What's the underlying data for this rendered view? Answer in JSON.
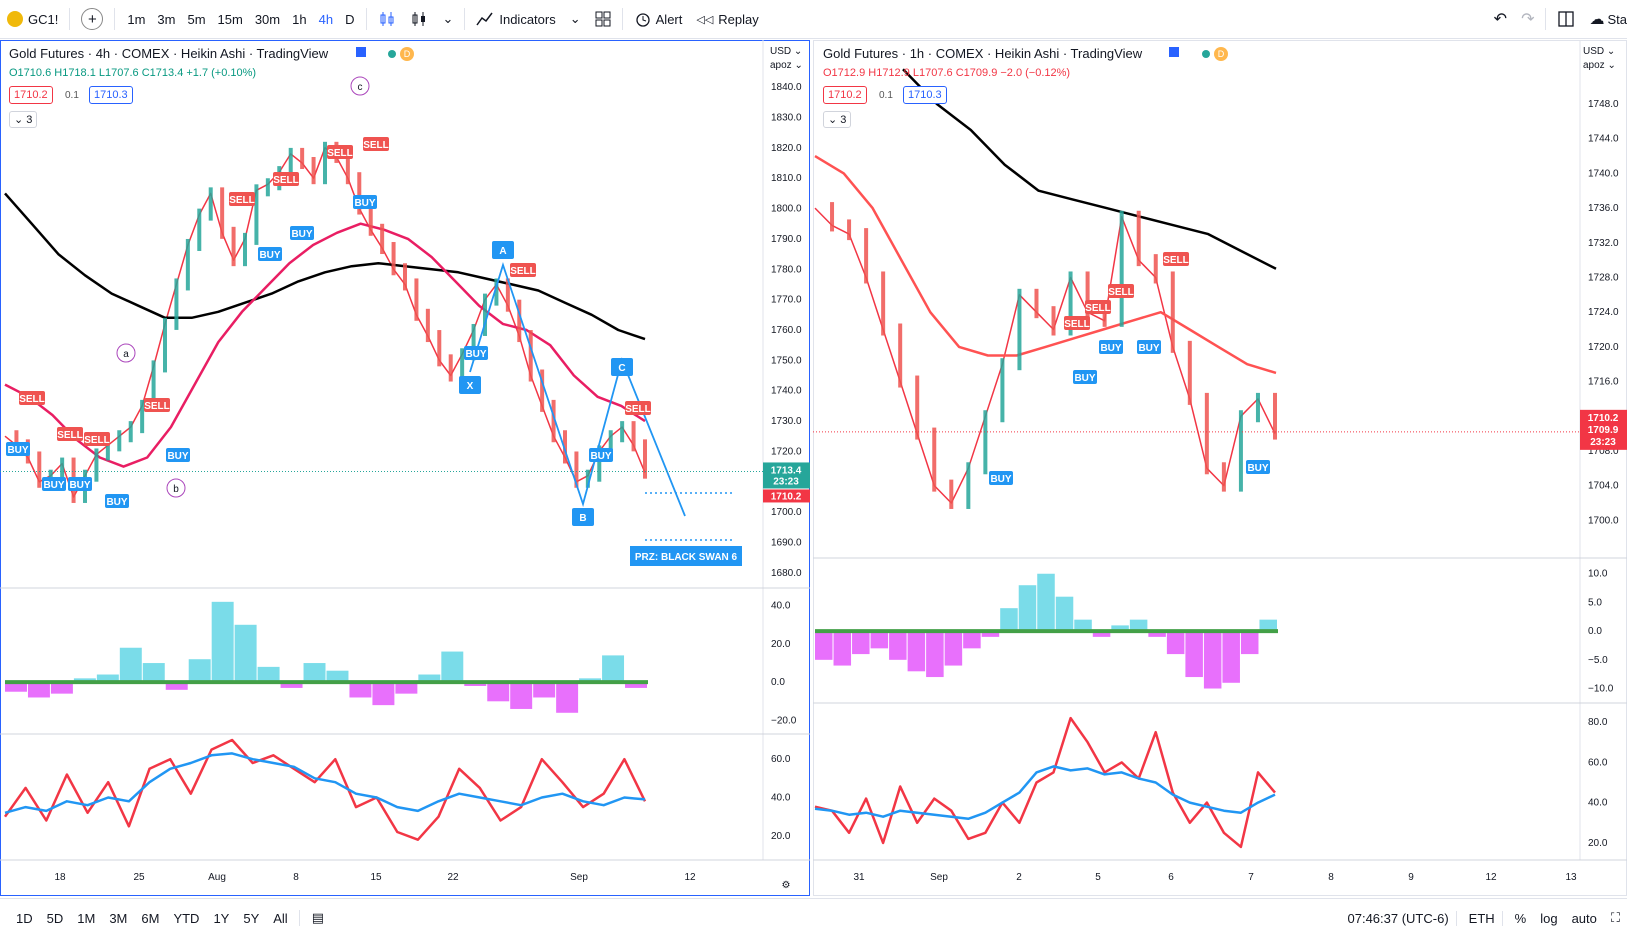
{
  "toolbar": {
    "symbol": "GC1!",
    "timeframes": [
      "1m",
      "3m",
      "5m",
      "15m",
      "30m",
      "1h",
      "4h",
      "D"
    ],
    "active_timeframe": "4h",
    "indicators": "Indicators",
    "alert": "Alert",
    "replay": "Replay",
    "right_partial": "Sta"
  },
  "bottombar": {
    "ranges": [
      "1D",
      "5D",
      "1M",
      "3M",
      "6M",
      "YTD",
      "1Y",
      "5Y",
      "All"
    ],
    "time": "07:46:37 (UTC-6)",
    "session": "ETH",
    "pct": "%",
    "log": "log",
    "auto": "auto"
  },
  "left": {
    "title": "Gold Futures · 4h · COMEX · Heikin Ashi · TradingView",
    "ohlc": "O1710.6  H1718.1  L1707.6  C1713.4  +1.7 (+0.10%)",
    "bid": "1710.2",
    "spread": "0.1",
    "ask": "1710.3",
    "collapse": "3",
    "currency": "USD",
    "scale_label": "apoz",
    "last_price": "1713.4",
    "countdown": "23:23",
    "bid_tag": "1710.2",
    "prz": "PRZ: BLACK SWAN 6",
    "wave_labels": [
      "a",
      "b",
      "c"
    ],
    "xabcd": [
      "X",
      "A",
      "B",
      "C"
    ],
    "signals_buy": [
      "BUY",
      "BUY",
      "BUY",
      "BUY",
      "BUY",
      "BUY",
      "BUY",
      "BUY",
      "BUY",
      "BUY"
    ],
    "signals_sell": [
      "SELL",
      "SELL",
      "SELL",
      "SELL",
      "SELL",
      "SELL",
      "SELL",
      "SELL",
      "SELL",
      "SELL"
    ]
  },
  "right": {
    "title": "Gold Futures · 1h · COMEX · Heikin Ashi · TradingView",
    "ohlc": "O1712.9  H1712.9  L1707.6  C1709.9  −2.0 (−0.12%)",
    "bid": "1710.2",
    "spread": "0.1",
    "ask": "1710.3",
    "collapse": "3",
    "currency": "USD",
    "scale_label": "apoz",
    "price_tag_1": "1710.2",
    "price_tag_2": "1709.9",
    "countdown": "23:23",
    "signals_buy": [
      "BUY",
      "BUY",
      "BUY",
      "BUY",
      "BUY"
    ],
    "signals_sell": [
      "SELL",
      "SELL",
      "SELL",
      "SELL"
    ]
  },
  "chart_data": [
    {
      "type": "line",
      "panel": "Gold Futures 4h Heikin Ashi",
      "title": "Gold Futures · 4h · COMEX · Heikin Ashi · TradingView",
      "x_ticks": [
        "18",
        "25",
        "Aug",
        "8",
        "15",
        "22",
        "Sep",
        "12"
      ],
      "y_ticks": [
        "1840.0",
        "1830.0",
        "1820.0",
        "1810.0",
        "1800.0",
        "1790.0",
        "1780.0",
        "1770.0",
        "1760.0",
        "1750.0",
        "1740.0",
        "1730.0",
        "1720.0",
        "1710.0",
        "1700.0",
        "1690.0",
        "1680.0"
      ],
      "ylim": [
        1676,
        1843
      ],
      "series": [
        {
          "color": "#f23645",
          "values": [
            1725,
            1722,
            1718,
            1710,
            1712,
            1716,
            1705,
            1712,
            1719,
            1722,
            1725,
            1728,
            1735,
            1748,
            1762,
            1775,
            1788,
            1798,
            1805,
            1792,
            1783,
            1790,
            1806,
            1808,
            1812,
            1818,
            1815,
            1810,
            1820,
            1817,
            1810,
            1800,
            1793,
            1787,
            1780,
            1775,
            1765,
            1758,
            1750,
            1745,
            1752,
            1760,
            1770,
            1775,
            1768,
            1758,
            1745,
            1735,
            1725,
            1718,
            1710,
            1712,
            1720,
            1725,
            1728,
            1722,
            1713
          ]
        },
        {
          "color": "#000000",
          "values": [
            1805,
            1795,
            1785,
            1778,
            1772,
            1768,
            1764,
            1764,
            1766,
            1769,
            1772,
            1776,
            1779,
            1781,
            1782,
            1781,
            1780,
            1779,
            1777,
            1775,
            1773,
            1769,
            1765,
            1760,
            1757
          ]
        },
        {
          "color": "#e91e63",
          "values": [
            1742,
            1738,
            1732,
            1724,
            1718,
            1715,
            1718,
            1728,
            1742,
            1756,
            1766,
            1774,
            1782,
            1788,
            1792,
            1795,
            1793,
            1790,
            1784,
            1776,
            1768,
            1762,
            1760,
            1755,
            1745,
            1738,
            1735,
            1730
          ]
        }
      ]
    },
    {
      "type": "bar",
      "panel": "Left histogram oscillator",
      "y_ticks": [
        "40.0",
        "20.0",
        "0.0",
        "−20.0"
      ],
      "ylim": [
        -25,
        44
      ],
      "values": [
        -5,
        -8,
        -6,
        2,
        4,
        18,
        10,
        -4,
        12,
        42,
        30,
        8,
        -3,
        10,
        6,
        -8,
        -12,
        -6,
        4,
        16,
        -2,
        -10,
        -14,
        -8,
        -16,
        2,
        14,
        -3
      ]
    },
    {
      "type": "line",
      "panel": "Left oscillator lines",
      "y_ticks": [
        "60.0",
        "40.0",
        "20.0"
      ],
      "ylim": [
        10,
        70
      ],
      "series": [
        {
          "color": "#f23645",
          "values": [
            30,
            45,
            28,
            52,
            32,
            48,
            25,
            55,
            60,
            42,
            65,
            70,
            58,
            62,
            55,
            48,
            60,
            35,
            40,
            22,
            18,
            30,
            55,
            45,
            28,
            35,
            60,
            48,
            35,
            42,
            60,
            38
          ]
        },
        {
          "color": "#2196f3",
          "values": [
            32,
            35,
            33,
            38,
            36,
            40,
            38,
            48,
            55,
            58,
            62,
            63,
            60,
            58,
            56,
            50,
            48,
            42,
            40,
            35,
            33,
            38,
            42,
            40,
            38,
            36,
            40,
            42,
            38,
            36,
            40,
            39
          ]
        }
      ]
    },
    {
      "type": "line",
      "panel": "Gold Futures 1h Heikin Ashi",
      "title": "Gold Futures · 1h · COMEX · Heikin Ashi · TradingView",
      "x_ticks": [
        "31",
        "Sep",
        "2",
        "5",
        "6",
        "7",
        "8",
        "9",
        "12",
        "13"
      ],
      "y_ticks": [
        "1748.0",
        "1744.0",
        "1740.0",
        "1736.0",
        "1732.0",
        "1728.0",
        "1724.0",
        "1720.0",
        "1716.0",
        "1712.0",
        "1708.0",
        "1704.0",
        "1700.0"
      ],
      "ylim": [
        1696,
        1751
      ],
      "series": [
        {
          "color": "#f23645",
          "values": [
            1736,
            1734,
            1733,
            1728,
            1722,
            1716,
            1710,
            1704,
            1702,
            1706,
            1712,
            1718,
            1726,
            1724,
            1722,
            1728,
            1724,
            1723,
            1735,
            1730,
            1728,
            1720,
            1714,
            1706,
            1704,
            1712,
            1714,
            1710
          ]
        },
        {
          "color": "#000000",
          "values": [
            1752,
            1748,
            1745,
            1741,
            1738,
            1737,
            1736,
            1735,
            1734,
            1733,
            1731,
            1729
          ]
        },
        {
          "color": "#ff5252",
          "values": [
            1742,
            1740,
            1736,
            1730,
            1724,
            1720,
            1719,
            1719,
            1720,
            1721,
            1722,
            1723,
            1724,
            1722,
            1720,
            1718,
            1717
          ]
        }
      ]
    },
    {
      "type": "bar",
      "panel": "Right histogram oscillator",
      "y_ticks": [
        "10.0",
        "5.0",
        "0.0",
        "−5.0",
        "−10.0"
      ],
      "ylim": [
        -12,
        11
      ],
      "values": [
        -5,
        -6,
        -4,
        -3,
        -5,
        -7,
        -8,
        -6,
        -3,
        -1,
        4,
        8,
        10,
        6,
        2,
        -1,
        1,
        2,
        -1,
        -4,
        -8,
        -10,
        -9,
        -4,
        2
      ]
    },
    {
      "type": "line",
      "panel": "Right oscillator lines",
      "y_ticks": [
        "80.0",
        "60.0",
        "40.0",
        "20.0"
      ],
      "ylim": [
        14,
        86
      ],
      "series": [
        {
          "color": "#f23645",
          "values": [
            38,
            36,
            25,
            42,
            20,
            48,
            30,
            42,
            36,
            22,
            25,
            40,
            30,
            50,
            55,
            82,
            70,
            55,
            60,
            52,
            75,
            45,
            30,
            40,
            25,
            18,
            55,
            45
          ]
        },
        {
          "color": "#2196f3",
          "values": [
            37,
            36,
            34,
            35,
            33,
            36,
            35,
            34,
            33,
            32,
            35,
            40,
            45,
            55,
            58,
            56,
            57,
            54,
            55,
            52,
            50,
            44,
            40,
            38,
            36,
            35,
            40,
            44
          ]
        }
      ]
    }
  ]
}
